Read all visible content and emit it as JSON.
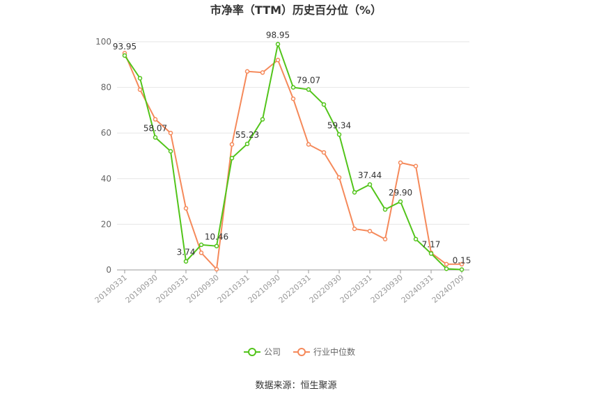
{
  "chart_data": {
    "type": "line",
    "title": "市净率（TTM）历史百分位（%）",
    "categories": [
      "20190331",
      null,
      "20190930",
      null,
      "20200331",
      null,
      "20200930",
      null,
      "20210331",
      null,
      "20210930",
      null,
      "20220331",
      null,
      "20220930",
      null,
      "20230331",
      null,
      "20230930",
      null,
      "20240331",
      null,
      "20240709"
    ],
    "series": [
      {
        "name": "公司",
        "color": "#52c41a",
        "values": [
          93.95,
          84,
          58.07,
          52,
          3.74,
          11,
          10.46,
          49,
          55.23,
          66,
          98.95,
          80,
          79.07,
          72.5,
          59.34,
          34,
          37.44,
          26.5,
          29.9,
          13.5,
          7.17,
          0.5,
          0.15
        ],
        "value_labels": [
          "93.95",
          null,
          "58.07",
          null,
          "3.74",
          null,
          "10.46",
          null,
          "55.23",
          null,
          "98.95",
          null,
          "79.07",
          null,
          "59.34",
          null,
          "37.44",
          null,
          "29.90",
          null,
          "7.17",
          null,
          "0.15"
        ]
      },
      {
        "name": "行业中位数",
        "color": "#f5895a",
        "values": [
          95,
          79,
          66,
          60,
          27,
          7.5,
          0.3,
          55,
          87,
          86.5,
          92,
          75,
          55,
          51.5,
          40.5,
          18,
          17,
          13.5,
          47,
          45.5,
          7.5,
          2.5,
          2.5
        ]
      }
    ],
    "ylim": [
      0,
      100
    ],
    "yticks": [
      0,
      20,
      40,
      60,
      80,
      100
    ],
    "grid": true,
    "source": "数据来源：恒生聚源"
  }
}
